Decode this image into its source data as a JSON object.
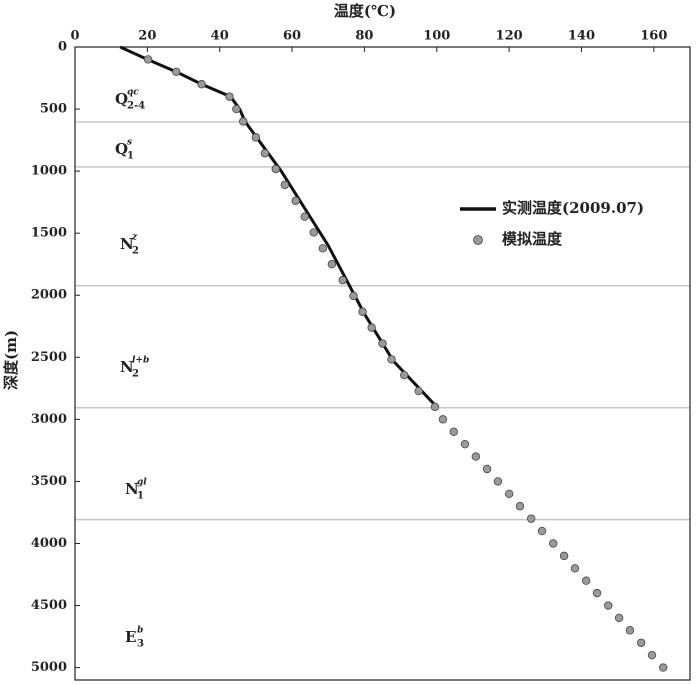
{
  "chart_data": {
    "type": "depth_profile",
    "x_label": "温度(℃)",
    "y_label": "深度(m)",
    "xlim": [
      0,
      170
    ],
    "ylim": [
      0,
      5100
    ],
    "xticks": [
      0,
      20,
      40,
      60,
      80,
      100,
      120,
      140,
      160
    ],
    "yticks": [
      0,
      500,
      1000,
      1500,
      2000,
      2500,
      3000,
      3500,
      4000,
      4500,
      5000
    ],
    "y_inverted": true,
    "layer_boundaries": [
      604,
      966,
      1924,
      2907,
      3808
    ],
    "layers": [
      {
        "base": "Q",
        "sup": "qc",
        "sub": "2-4"
      },
      {
        "base": "Q",
        "sup": "s",
        "sub": "1"
      },
      {
        "base": "N",
        "sup": "z",
        "sub": "2"
      },
      {
        "base": "N",
        "sup": "l+b",
        "sub": "2"
      },
      {
        "base": "N",
        "sup": "gl",
        "sub": "1"
      },
      {
        "base": "E",
        "sup": "b",
        "sub": "3"
      }
    ],
    "series": [
      {
        "name": "实测温度(2009.07)",
        "color": "#111111",
        "style": "line",
        "x": [
          12.5,
          20,
          28,
          35,
          43,
          45.5,
          47,
          57,
          70,
          80,
          88,
          100
        ],
        "y": [
          0,
          100,
          200,
          300,
          400,
          500,
          600,
          1000,
          1600,
          2150,
          2530,
          2900
        ]
      },
      {
        "name": "模拟温度",
        "color": "#9a9a9a",
        "style": "dots",
        "x": [
          20.2,
          28,
          35,
          42.7,
          44.6,
          46.5,
          50,
          52.5,
          55.5,
          58,
          61,
          63.5,
          66,
          68.5,
          71,
          74,
          77,
          79.5,
          82,
          85,
          87.5,
          91,
          95,
          99.5,
          101.7,
          104.7,
          107.8,
          110.8,
          113.9,
          116.9,
          120,
          123,
          126.1,
          129.1,
          132.2,
          135.2,
          138.2,
          141.3,
          144.3,
          147.4,
          150.4,
          153.4,
          156.5,
          159.5,
          162.6
        ],
        "y": [
          100,
          200,
          300,
          400,
          500,
          600,
          728,
          856,
          983,
          1111,
          1239,
          1367,
          1494,
          1622,
          1750,
          1878,
          2006,
          2133,
          2261,
          2389,
          2517,
          2644,
          2772,
          2900,
          3000,
          3100,
          3200,
          3300,
          3400,
          3500,
          3600,
          3700,
          3800,
          3900,
          4000,
          4100,
          4200,
          4300,
          4400,
          4500,
          4600,
          4700,
          4800,
          4900,
          5000
        ]
      }
    ]
  }
}
